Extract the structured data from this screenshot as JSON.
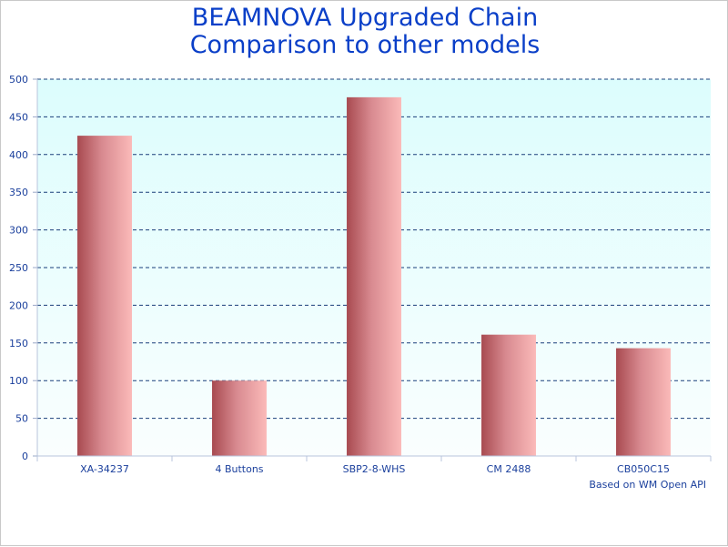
{
  "chart_data": {
    "type": "bar",
    "title_lines": [
      "BEAMNOVA Upgraded Chain",
      "Comparison to other models"
    ],
    "categories": [
      "XA-34237",
      "4 Buttons",
      "SBP2-8-WHS",
      "CM 2488",
      "CB050C15"
    ],
    "values": [
      425,
      100,
      476,
      161,
      143
    ],
    "ylim": [
      0,
      500
    ],
    "y_ticks": [
      0,
      50,
      100,
      150,
      200,
      250,
      300,
      350,
      400,
      450,
      500
    ],
    "grid": true,
    "xlabel": "",
    "ylabel": "",
    "footnote": "Based on WM Open API"
  },
  "colors": {
    "title": "#0a3fc8",
    "axis_text": "#1a3f9c",
    "grid": "#1a3f7a",
    "plot_bg_top": "#dcfdfd",
    "plot_bg_bottom": "#fafefe",
    "bar_dark": "#a84a50",
    "bar_mid": "#d88a90",
    "bar_light": "#fbbab9"
  }
}
